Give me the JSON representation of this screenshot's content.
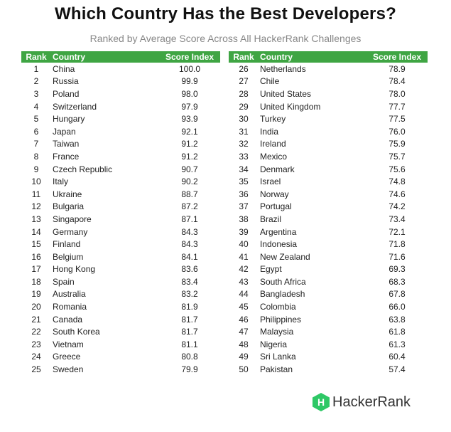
{
  "title": "Which Country Has the Best Developers?",
  "subtitle": "Ranked by Average Score Across All HackerRank Challenges",
  "headers": {
    "rank": "Rank",
    "country": "Country",
    "score": "Score Index"
  },
  "rows_left": [
    {
      "rank": "1",
      "country": "China",
      "score": "100.0"
    },
    {
      "rank": "2",
      "country": "Russia",
      "score": "99.9"
    },
    {
      "rank": "3",
      "country": "Poland",
      "score": "98.0"
    },
    {
      "rank": "4",
      "country": "Switzerland",
      "score": "97.9"
    },
    {
      "rank": "5",
      "country": "Hungary",
      "score": "93.9"
    },
    {
      "rank": "6",
      "country": "Japan",
      "score": "92.1"
    },
    {
      "rank": "7",
      "country": "Taiwan",
      "score": "91.2"
    },
    {
      "rank": "8",
      "country": "France",
      "score": "91.2"
    },
    {
      "rank": "9",
      "country": "Czech Republic",
      "score": "90.7"
    },
    {
      "rank": "10",
      "country": "Italy",
      "score": "90.2"
    },
    {
      "rank": "11",
      "country": "Ukraine",
      "score": "88.7"
    },
    {
      "rank": "12",
      "country": "Bulgaria",
      "score": "87.2"
    },
    {
      "rank": "13",
      "country": "Singapore",
      "score": "87.1"
    },
    {
      "rank": "14",
      "country": "Germany",
      "score": "84.3"
    },
    {
      "rank": "15",
      "country": "Finland",
      "score": "84.3"
    },
    {
      "rank": "16",
      "country": "Belgium",
      "score": "84.1"
    },
    {
      "rank": "17",
      "country": "Hong Kong",
      "score": "83.6"
    },
    {
      "rank": "18",
      "country": "Spain",
      "score": "83.4"
    },
    {
      "rank": "19",
      "country": "Australia",
      "score": "83.2"
    },
    {
      "rank": "20",
      "country": "Romania",
      "score": "81.9"
    },
    {
      "rank": "21",
      "country": "Canada",
      "score": "81.7"
    },
    {
      "rank": "22",
      "country": "South Korea",
      "score": "81.7"
    },
    {
      "rank": "23",
      "country": "Vietnam",
      "score": "81.1"
    },
    {
      "rank": "24",
      "country": "Greece",
      "score": "80.8"
    },
    {
      "rank": "25",
      "country": "Sweden",
      "score": "79.9"
    }
  ],
  "rows_right": [
    {
      "rank": "26",
      "country": "Netherlands",
      "score": "78.9"
    },
    {
      "rank": "27",
      "country": "Chile",
      "score": "78.4"
    },
    {
      "rank": "28",
      "country": "United States",
      "score": "78.0"
    },
    {
      "rank": "29",
      "country": "United Kingdom",
      "score": "77.7"
    },
    {
      "rank": "30",
      "country": "Turkey",
      "score": "77.5"
    },
    {
      "rank": "31",
      "country": "India",
      "score": "76.0"
    },
    {
      "rank": "32",
      "country": "Ireland",
      "score": "75.9"
    },
    {
      "rank": "33",
      "country": "Mexico",
      "score": "75.7"
    },
    {
      "rank": "34",
      "country": "Denmark",
      "score": "75.6"
    },
    {
      "rank": "35",
      "country": "Israel",
      "score": "74.8"
    },
    {
      "rank": "36",
      "country": "Norway",
      "score": "74.6"
    },
    {
      "rank": "37",
      "country": "Portugal",
      "score": "74.2"
    },
    {
      "rank": "38",
      "country": "Brazil",
      "score": "73.4"
    },
    {
      "rank": "39",
      "country": "Argentina",
      "score": "72.1"
    },
    {
      "rank": "40",
      "country": "Indonesia",
      "score": "71.8"
    },
    {
      "rank": "41",
      "country": "New Zealand",
      "score": "71.6"
    },
    {
      "rank": "42",
      "country": "Egypt",
      "score": "69.3"
    },
    {
      "rank": "43",
      "country": "South Africa",
      "score": "68.3"
    },
    {
      "rank": "44",
      "country": "Bangladesh",
      "score": "67.8"
    },
    {
      "rank": "45",
      "country": "Colombia",
      "score": "66.0"
    },
    {
      "rank": "46",
      "country": "Philippines",
      "score": "63.8"
    },
    {
      "rank": "47",
      "country": "Malaysia",
      "score": "61.8"
    },
    {
      "rank": "48",
      "country": "Nigeria",
      "score": "61.3"
    },
    {
      "rank": "49",
      "country": "Sri Lanka",
      "score": "60.4"
    },
    {
      "rank": "50",
      "country": "Pakistan",
      "score": "57.4"
    }
  ],
  "brand": {
    "name": "HackerRank",
    "icon": "hackerrank-logo-icon",
    "letter": "H"
  },
  "colors": {
    "header_bg": "#3fa543",
    "header_text": "#ffffff",
    "logo_green": "#2ec866"
  }
}
